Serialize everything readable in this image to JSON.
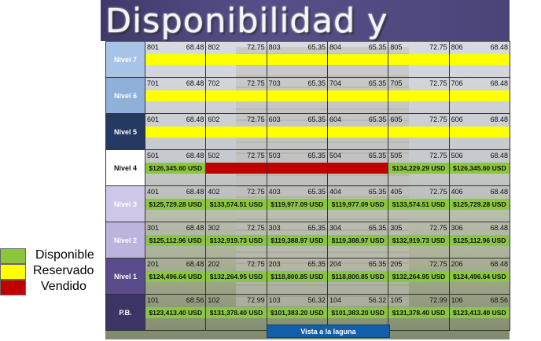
{
  "header": {
    "title": "Disponibilidad y precios."
  },
  "colors": {
    "disponible": "#8cc63f",
    "reservado": "#ffff00",
    "vendido": "#c00000",
    "level_fills": [
      "#a7c3e6",
      "#8fb0d8",
      "#243a63",
      "#ffffff",
      "#cfc7e8",
      "#bcb4dd",
      "#5a4c8a",
      "#3c3463"
    ]
  },
  "legend": [
    {
      "label": "Disponible",
      "status": "disponible"
    },
    {
      "label": "Reservado",
      "status": "reservado"
    },
    {
      "label": "Vendido",
      "status": "vendido"
    }
  ],
  "footer": {
    "view_label": "Vista a la laguna"
  },
  "levels": [
    {
      "label": "Nivel 7",
      "units": [
        {
          "no": "801",
          "area": "68.48",
          "status": "reservado",
          "price": ""
        },
        {
          "no": "802",
          "area": "72.75",
          "status": "reservado",
          "price": ""
        },
        {
          "no": "803",
          "area": "65.35",
          "status": "reservado",
          "price": ""
        },
        {
          "no": "804",
          "area": "65.35",
          "status": "reservado",
          "price": ""
        },
        {
          "no": "805",
          "area": "72.75",
          "status": "reservado",
          "price": ""
        },
        {
          "no": "806",
          "area": "68.48",
          "status": "reservado",
          "price": ""
        }
      ]
    },
    {
      "label": "Nivel 6",
      "units": [
        {
          "no": "701",
          "area": "68.48",
          "status": "reservado",
          "price": ""
        },
        {
          "no": "702",
          "area": "72.75",
          "status": "reservado",
          "price": ""
        },
        {
          "no": "703",
          "area": "65.35",
          "status": "reservado",
          "price": ""
        },
        {
          "no": "704",
          "area": "65.35",
          "status": "reservado",
          "price": ""
        },
        {
          "no": "705",
          "area": "72.75",
          "status": "reservado",
          "price": ""
        },
        {
          "no": "706",
          "area": "68.48",
          "status": "reservado",
          "price": ""
        }
      ]
    },
    {
      "label": "Nivel 5",
      "units": [
        {
          "no": "601",
          "area": "68.48",
          "status": "reservado",
          "price": ""
        },
        {
          "no": "602",
          "area": "72.75",
          "status": "reservado",
          "price": ""
        },
        {
          "no": "603",
          "area": "65.35",
          "status": "reservado",
          "price": ""
        },
        {
          "no": "604",
          "area": "65.35",
          "status": "reservado",
          "price": ""
        },
        {
          "no": "605",
          "area": "72.75",
          "status": "reservado",
          "price": ""
        },
        {
          "no": "606",
          "area": "68.48",
          "status": "reservado",
          "price": ""
        }
      ]
    },
    {
      "label": "Nivel 4",
      "units": [
        {
          "no": "501",
          "area": "68.48",
          "status": "disponible",
          "price": "$126,345.60 USD"
        },
        {
          "no": "502",
          "area": "72.75",
          "status": "vendido",
          "price": ""
        },
        {
          "no": "503",
          "area": "65.35",
          "status": "vendido",
          "price": ""
        },
        {
          "no": "504",
          "area": "65.35",
          "status": "vendido",
          "price": ""
        },
        {
          "no": "505",
          "area": "72.75",
          "status": "disponible",
          "price": "$134,229.29 USD"
        },
        {
          "no": "506",
          "area": "68.48",
          "status": "disponible",
          "price": "$126,345.60 USD"
        }
      ]
    },
    {
      "label": "Nivel 3",
      "units": [
        {
          "no": "401",
          "area": "68.48",
          "status": "disponible",
          "price": "$125,729.28 USD"
        },
        {
          "no": "402",
          "area": "72.75",
          "status": "disponible",
          "price": "$133,574.51 USD"
        },
        {
          "no": "403",
          "area": "65.35",
          "status": "disponible",
          "price": "$119,977.09 USD"
        },
        {
          "no": "404",
          "area": "65.35",
          "status": "disponible",
          "price": "$119,977.09 USD"
        },
        {
          "no": "405",
          "area": "72.75",
          "status": "disponible",
          "price": "$133,574.51 USD"
        },
        {
          "no": "406",
          "area": "68.48",
          "status": "disponible",
          "price": "$125,729.28 USD"
        }
      ]
    },
    {
      "label": "Nivel 2",
      "units": [
        {
          "no": "301",
          "area": "68.48",
          "status": "disponible",
          "price": "$125,112.96 USD"
        },
        {
          "no": "302",
          "area": "72.75",
          "status": "disponible",
          "price": "$132,919.73 USD"
        },
        {
          "no": "303",
          "area": "65.35",
          "status": "disponible",
          "price": "$119,388.97 USD"
        },
        {
          "no": "304",
          "area": "65.35",
          "status": "disponible",
          "price": "$119,388.97 USD"
        },
        {
          "no": "305",
          "area": "72.75",
          "status": "disponible",
          "price": "$132,919.73 USD"
        },
        {
          "no": "306",
          "area": "68.48",
          "status": "disponible",
          "price": "$125,112.96 USD"
        }
      ]
    },
    {
      "label": "Nivel 1",
      "units": [
        {
          "no": "201",
          "area": "68.48",
          "status": "disponible",
          "price": "$124,496.64 USD"
        },
        {
          "no": "202",
          "area": "72.75",
          "status": "disponible",
          "price": "$132,264.95 USD"
        },
        {
          "no": "203",
          "area": "65.35",
          "status": "disponible",
          "price": "$118,800.85 USD"
        },
        {
          "no": "204",
          "area": "65.35",
          "status": "disponible",
          "price": "$118,800.85 USD"
        },
        {
          "no": "205",
          "area": "72.75",
          "status": "disponible",
          "price": "$132,264.95 USD"
        },
        {
          "no": "206",
          "area": "68.48",
          "status": "disponible",
          "price": "$124,496.64 USD"
        }
      ]
    },
    {
      "label": "P.B.",
      "units": [
        {
          "no": "101",
          "area": "68.56",
          "status": "disponible",
          "price": "$123,413.40 USD"
        },
        {
          "no": "102",
          "area": "72.99",
          "status": "disponible",
          "price": "$131,378.40 USD"
        },
        {
          "no": "103",
          "area": "56.32",
          "status": "disponible",
          "price": "$101,383.20 USD"
        },
        {
          "no": "104",
          "area": "56.32",
          "status": "disponible",
          "price": "$101,383.20 USD"
        },
        {
          "no": "105",
          "area": "72.99",
          "status": "disponible",
          "price": "$131,378.40 USD"
        },
        {
          "no": "106",
          "area": "68.56",
          "status": "disponible",
          "price": "$123,413.40 USD"
        }
      ]
    }
  ]
}
